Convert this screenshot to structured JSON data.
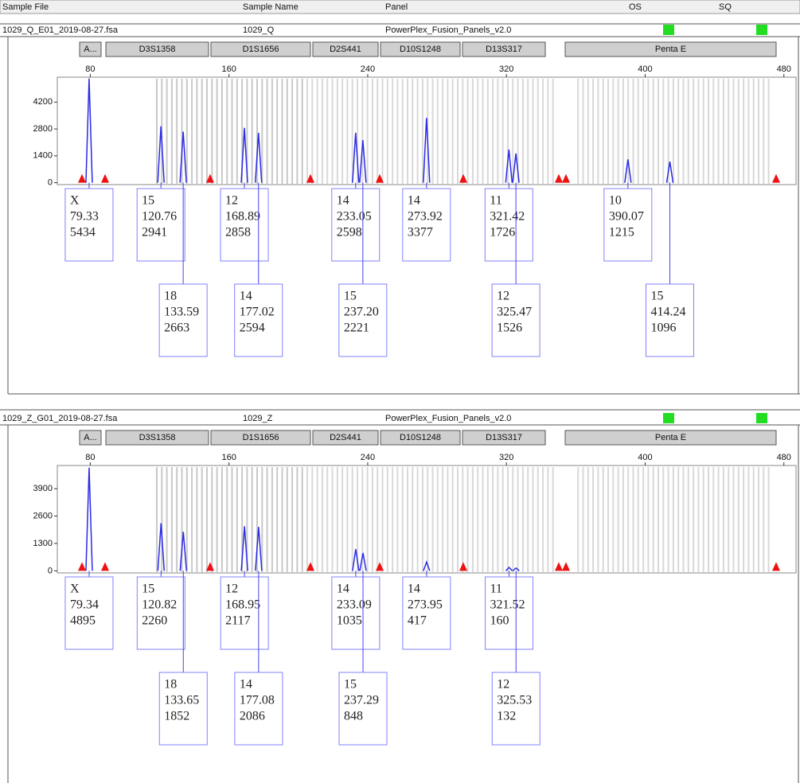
{
  "header": {
    "sample_file": "Sample File",
    "sample_name": "Sample Name",
    "panel": "Panel",
    "os": "OS",
    "sq": "SQ"
  },
  "chart_data": [
    {
      "type": "electropherogram",
      "sample_file": "1029_Q_E01_2019-08-27.fsa",
      "sample_name": "1029_Q",
      "panel": "PowerPlex_Fusion_Panels_v2.0",
      "markers": [
        "A...",
        "D3S1358",
        "D1S1656",
        "D2S441",
        "D10S1248",
        "D13S317",
        "Penta E"
      ],
      "xlim": [
        61,
        487
      ],
      "xticks": [
        80,
        160,
        240,
        320,
        400,
        480
      ],
      "ylim": [
        -100,
        5500
      ],
      "yticks": [
        0,
        1400,
        2800,
        4200
      ],
      "alleles": [
        "X",
        "15",
        "18",
        "12",
        "14",
        "14",
        "15",
        "14",
        "11",
        "12",
        "10",
        "15"
      ],
      "x": [
        79.33,
        120.76,
        133.59,
        168.89,
        177.02,
        233.05,
        237.2,
        273.92,
        321.42,
        325.47,
        390.07,
        414.24
      ],
      "x_labels": [
        "79.33",
        "120.76",
        "133.59",
        "168.89",
        "177.02",
        "233.05",
        "237.20",
        "273.92",
        "321.42",
        "325.47",
        "390.07",
        "414.24"
      ],
      "values": [
        5434,
        2941,
        2663,
        2858,
        2594,
        2598,
        2221,
        3377,
        1726,
        1526,
        1215,
        1096
      ],
      "color": "#2a2ae6"
    },
    {
      "type": "electropherogram",
      "sample_file": "1029_Z_G01_2019-08-27.fsa",
      "sample_name": "1029_Z",
      "panel": "PowerPlex_Fusion_Panels_v2.0",
      "markers": [
        "A...",
        "D3S1358",
        "D1S1656",
        "D2S441",
        "D10S1248",
        "D13S317",
        "Penta E"
      ],
      "xlim": [
        61,
        487
      ],
      "xticks": [
        80,
        160,
        240,
        320,
        400,
        480
      ],
      "ylim": [
        -100,
        5000
      ],
      "yticks": [
        0,
        1300,
        2600,
        3900
      ],
      "alleles": [
        "X",
        "15",
        "18",
        "12",
        "14",
        "14",
        "15",
        "14",
        "11",
        "12"
      ],
      "x": [
        79.34,
        120.82,
        133.65,
        168.95,
        177.08,
        233.09,
        237.29,
        273.95,
        321.52,
        325.53
      ],
      "x_labels": [
        "79.34",
        "120.82",
        "133.65",
        "168.95",
        "177.08",
        "233.09",
        "237.29",
        "273.95",
        "321.52",
        "325.53"
      ],
      "values": [
        4895,
        2260,
        1852,
        2117,
        2086,
        1035,
        848,
        417,
        160,
        132
      ],
      "color": "#2a2ae6"
    }
  ]
}
